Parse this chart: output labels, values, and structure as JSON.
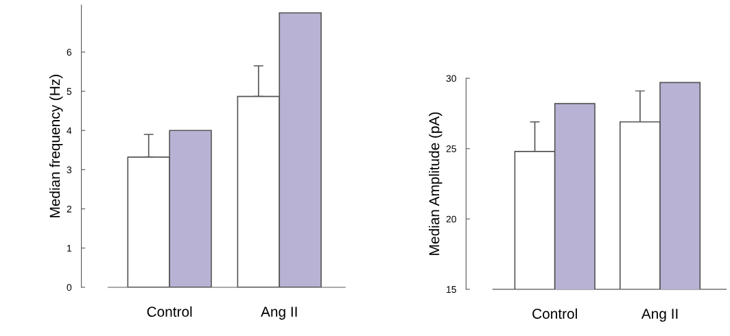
{
  "chart_data": [
    {
      "type": "bar",
      "ylabel": "Median frequency (Hz)",
      "categories": [
        "Control",
        "Ang II"
      ],
      "ylim": [
        0,
        7.2
      ],
      "yticks": [
        0,
        1,
        2,
        3,
        4,
        5,
        6
      ],
      "grid": false,
      "legend": false,
      "series": [
        {
          "color": "#ffffff",
          "values": [
            3.32,
            4.87
          ],
          "errors": [
            [
              3.32,
              3.9
            ],
            [
              4.87,
              5.65
            ]
          ]
        },
        {
          "color": "#b8b2d4",
          "values": [
            4.0,
            7.0
          ]
        }
      ]
    },
    {
      "type": "bar",
      "ylabel": "Median Amplitude (pA)",
      "categories": [
        "Control",
        "Ang II"
      ],
      "ylim": [
        15,
        30
      ],
      "yticks": [
        15,
        20,
        25,
        30
      ],
      "grid": false,
      "legend": false,
      "series": [
        {
          "color": "#ffffff",
          "values": [
            24.8,
            26.9
          ],
          "errors": [
            [
              24.8,
              26.9
            ],
            [
              26.9,
              29.1
            ]
          ]
        },
        {
          "color": "#b8b2d4",
          "values": [
            28.2,
            29.7
          ]
        }
      ]
    }
  ]
}
